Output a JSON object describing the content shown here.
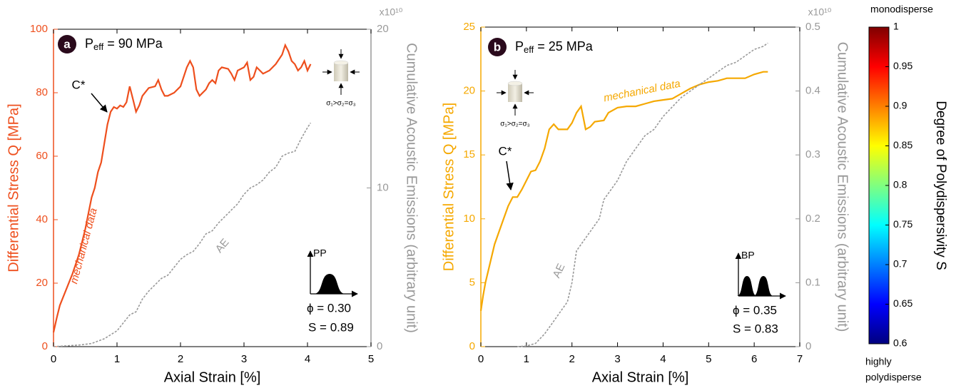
{
  "chart_data": [
    {
      "type": "line",
      "panel_label": "a",
      "pressure_label": [
        "P",
        "eff",
        " = 90 MPa"
      ],
      "x_label": "Axial Strain [%]",
      "y_label": "Differential Stress Q [MPa]",
      "y2_label": "Cumulative Acoustic Emissions (arbitrary unit)",
      "y2_exponent_label": "x10¹⁰",
      "peak_label": "C*",
      "stress_state_label": "σ₁>σ₂=σ₃",
      "distribution_label": "PP",
      "porosity_label": "ϕ = 0.30",
      "polydispersity_label": "S = 0.89",
      "xlim": [
        0,
        5
      ],
      "xticks": [
        0,
        1,
        2,
        3,
        4,
        5
      ],
      "ylim": [
        0,
        100
      ],
      "yticks": [
        0,
        20,
        40,
        60,
        80,
        100
      ],
      "y2lim": [
        0,
        20
      ],
      "y2ticks": [
        0,
        10,
        20
      ],
      "series": [
        {
          "name": "mechanical data",
          "color": "#ee4f1d",
          "dash": false,
          "x": [
            0,
            0.05,
            0.1,
            0.2,
            0.3,
            0.4,
            0.5,
            0.6,
            0.65,
            0.7,
            0.75,
            0.8,
            0.85,
            0.9,
            0.95,
            1.0,
            1.05,
            1.1,
            1.15,
            1.2,
            1.25,
            1.3,
            1.35,
            1.4,
            1.5,
            1.6,
            1.65,
            1.7,
            1.75,
            1.8,
            1.9,
            2.0,
            2.1,
            2.15,
            2.2,
            2.25,
            2.3,
            2.4,
            2.45,
            2.5,
            2.55,
            2.6,
            2.65,
            2.75,
            2.8,
            2.85,
            2.9,
            3.0,
            3.05,
            3.1,
            3.15,
            3.2,
            3.25,
            3.3,
            3.4,
            3.5,
            3.6,
            3.65,
            3.7,
            3.75,
            3.8,
            3.85,
            3.9,
            3.95,
            4.0,
            4.05
          ],
          "values": [
            4.5,
            9,
            13,
            18,
            23,
            29,
            37,
            47,
            50,
            55,
            58,
            64,
            70,
            74,
            75.5,
            75,
            76,
            75.5,
            77,
            82,
            78,
            74,
            76,
            79,
            81.5,
            82,
            84,
            81,
            79,
            79,
            80,
            82,
            88,
            90,
            88,
            81,
            79,
            81,
            83,
            84,
            83,
            87,
            88,
            87.5,
            86,
            84,
            87,
            88,
            89.5,
            84,
            85,
            88,
            87,
            86,
            87,
            89,
            92,
            95,
            93,
            90,
            89,
            87,
            88,
            90,
            87,
            89
          ]
        },
        {
          "name": "AE",
          "color": "#999999",
          "dash": true,
          "axis": "y2",
          "x": [
            0,
            0.4,
            0.6,
            0.8,
            1.0,
            1.2,
            1.3,
            1.4,
            1.5,
            1.7,
            1.8,
            2.0,
            2.1,
            2.2,
            2.3,
            2.4,
            2.5,
            2.6,
            2.7,
            2.8,
            2.9,
            3.0,
            3.1,
            3.2,
            3.3,
            3.4,
            3.5,
            3.6,
            3.7,
            3.8,
            3.9,
            4.0,
            4.05
          ],
          "values": [
            0,
            0.1,
            0.2,
            0.5,
            1.0,
            2,
            2.2,
            3,
            3.5,
            4.3,
            4.5,
            5.5,
            5.8,
            6,
            6.5,
            7.1,
            7.3,
            7.8,
            8.2,
            8.6,
            9,
            9.6,
            10,
            10.2,
            10.5,
            11,
            11.3,
            12,
            12.2,
            12.3,
            13.1,
            13.8,
            14.1
          ]
        }
      ]
    },
    {
      "type": "line",
      "panel_label": "b",
      "pressure_label": [
        "P",
        "eff",
        " = 25 MPa"
      ],
      "x_label": "Axial Strain [%]",
      "y_label": "Differential Stress Q [MPa]",
      "y2_label": "Cumulative Acoustic Emissions (arbitrary unit)",
      "y2_exponent_label": "x10¹⁰",
      "peak_label": "C*",
      "stress_state_label": "σ₁>σ₂=σ₃",
      "distribution_label": "BP",
      "porosity_label": "ϕ = 0.35",
      "polydispersity_label": "S = 0.83",
      "xlim": [
        0,
        7
      ],
      "xticks": [
        0,
        1,
        2,
        3,
        4,
        5,
        6,
        7
      ],
      "ylim": [
        0,
        25
      ],
      "yticks": [
        0,
        5,
        10,
        15,
        20,
        25
      ],
      "y2lim": [
        0,
        0.5
      ],
      "y2ticks": [
        0,
        0.1,
        0.2,
        0.3,
        0.4,
        0.5
      ],
      "series": [
        {
          "name": "mechanical data",
          "color": "#f5a800",
          "dash": false,
          "x": [
            0,
            0.05,
            0.1,
            0.2,
            0.3,
            0.4,
            0.5,
            0.6,
            0.7,
            0.8,
            0.9,
            1.0,
            1.1,
            1.2,
            1.3,
            1.4,
            1.5,
            1.6,
            1.7,
            1.9,
            2.0,
            2.1,
            2.2,
            2.3,
            2.4,
            2.5,
            2.7,
            2.8,
            3.0,
            3.2,
            3.4,
            3.6,
            3.8,
            4.0,
            4.2,
            4.4,
            4.6,
            4.8,
            5.0,
            5.2,
            5.4,
            5.6,
            5.8,
            6.0,
            6.2,
            6.3
          ],
          "values": [
            2.8,
            4,
            5,
            6.5,
            8,
            9,
            10,
            11,
            11.7,
            11.7,
            12.3,
            13,
            13.7,
            13.8,
            14.5,
            15.5,
            17,
            17.4,
            17,
            17,
            17.5,
            18.3,
            18.8,
            17,
            17.2,
            17.6,
            17.7,
            18.3,
            18.7,
            18.8,
            18.8,
            19,
            19.2,
            19.3,
            19.4,
            19.8,
            20.2,
            20.5,
            20.7,
            20.8,
            21,
            21,
            21,
            21.3,
            21.5,
            21.5
          ]
        },
        {
          "name": "AE",
          "color": "#999999",
          "dash": true,
          "axis": "y2",
          "x": [
            0.8,
            1.0,
            1.2,
            1.4,
            1.6,
            1.8,
            1.9,
            2.0,
            2.1,
            2.2,
            2.4,
            2.6,
            2.7,
            2.8,
            3.0,
            3.2,
            3.4,
            3.6,
            3.8,
            4.0,
            4.2,
            4.4,
            4.6,
            4.8,
            5.0,
            5.2,
            5.4,
            5.6,
            5.8,
            6.0,
            6.2,
            6.3
          ],
          "values": [
            0,
            0.001,
            0.005,
            0.02,
            0.04,
            0.06,
            0.07,
            0.1,
            0.15,
            0.16,
            0.18,
            0.2,
            0.23,
            0.24,
            0.26,
            0.29,
            0.31,
            0.33,
            0.34,
            0.36,
            0.375,
            0.39,
            0.4,
            0.41,
            0.42,
            0.43,
            0.44,
            0.445,
            0.455,
            0.465,
            0.47,
            0.475
          ]
        }
      ]
    },
    {
      "type": "colorbar",
      "title": "Degree of Polydispersivity S",
      "top_label": "monodisperse",
      "bottom_label": [
        "highly",
        "polydisperse"
      ],
      "colormap": "jet",
      "ylim": [
        0.6,
        1
      ],
      "yticks": [
        0.6,
        0.65,
        0.7,
        0.75,
        0.8,
        0.85,
        0.9,
        0.95,
        1
      ]
    }
  ]
}
